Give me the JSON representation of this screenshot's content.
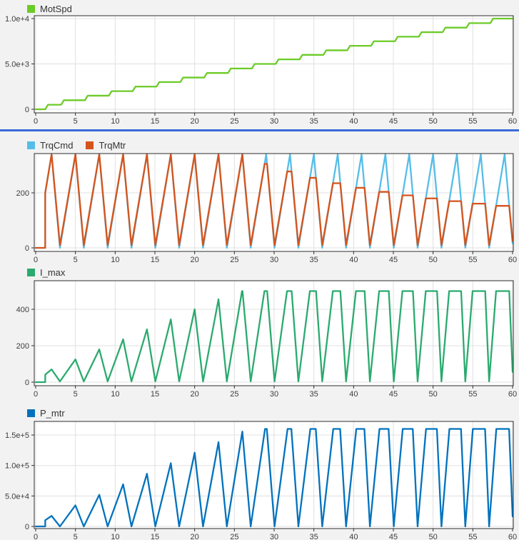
{
  "page": {
    "background_color": "#f2f2f2",
    "plot_background_color": "#ffffff",
    "grid_color": "#e0e0e0",
    "frame_color": "#2e2e2e",
    "tick_label_color": "#3d3d3d",
    "divider_color": "#3b6adb"
  },
  "chart_data": [
    {
      "id": "motspd",
      "type": "line",
      "title": "MotSpd",
      "legend": [
        {
          "label": "MotSpd",
          "color": "#6ccb28"
        }
      ],
      "x_ticks": [
        0,
        5,
        10,
        15,
        20,
        25,
        30,
        35,
        40,
        45,
        50,
        55,
        60
      ],
      "xlim": [
        0,
        60
      ],
      "y_ticks": [
        {
          "value": 0,
          "label": "0"
        },
        {
          "value": 5000,
          "label": "5.0e+3"
        },
        {
          "value": 10000,
          "label": "1.0e+4"
        }
      ],
      "ylim": [
        0,
        10000
      ],
      "grid": true,
      "series": [
        {
          "name": "MotSpd",
          "color": "#6ccb28",
          "kind": "staircase",
          "start": 0,
          "ramp": 0.35,
          "t_end": 60,
          "step_times": [
            1.2,
            3.2,
            6.2,
            9.2,
            12.2,
            15.2,
            18.2,
            21.2,
            24.2,
            27.2,
            30.2,
            33.2,
            36.2,
            39.2,
            42.2,
            45.2,
            48.2,
            51.2,
            54.2,
            57.2
          ],
          "step_values": [
            500,
            1000,
            1500,
            2000,
            2500,
            3000,
            3500,
            4000,
            4500,
            5000,
            5500,
            6000,
            6500,
            7000,
            7500,
            8000,
            8500,
            9000,
            9500,
            10000
          ]
        }
      ]
    },
    {
      "id": "torque",
      "type": "line",
      "title": "TrqCmd / TrqMtr",
      "legend": [
        {
          "label": "TrqCmd",
          "color": "#55bde8"
        },
        {
          "label": "TrqMtr",
          "color": "#d5541d"
        }
      ],
      "x_ticks": [
        0,
        5,
        10,
        15,
        20,
        25,
        30,
        35,
        40,
        45,
        50,
        55,
        60
      ],
      "xlim": [
        0,
        60
      ],
      "y_ticks": [
        {
          "value": 0,
          "label": "0"
        },
        {
          "value": 200,
          "label": "200"
        }
      ],
      "ylim": [
        0,
        345
      ],
      "grid": true,
      "series": [
        {
          "name": "TrqCmd",
          "color": "#55bde8",
          "kind": "triangle_train",
          "enable_time": 1.2,
          "rise": 1.95,
          "fall": 1.05,
          "trough": 0,
          "t_end": 60,
          "peak_times": [
            2,
            5,
            8,
            11,
            14,
            17,
            20,
            23,
            26,
            29,
            32,
            35,
            38,
            41,
            44,
            47,
            50,
            53,
            56,
            59
          ],
          "virtual_peaks": [
            340,
            340,
            340,
            340,
            340,
            340,
            340,
            340,
            340,
            340,
            340,
            340,
            340,
            340,
            340,
            340,
            340,
            340,
            340,
            340
          ]
        },
        {
          "name": "TrqMtr",
          "color": "#d5541d",
          "kind": "triangle_train",
          "enable_time": 1.2,
          "rise": 1.95,
          "fall": 1.05,
          "trough": 10,
          "t_end": 60,
          "peak_times": [
            2,
            5,
            8,
            11,
            14,
            17,
            20,
            23,
            26,
            29,
            32,
            35,
            38,
            41,
            44,
            47,
            50,
            53,
            56,
            59
          ],
          "virtual_peaks": [
            340,
            340,
            340,
            340,
            340,
            340,
            340,
            340,
            340,
            340,
            340,
            340,
            340,
            340,
            340,
            340,
            340,
            340,
            340,
            340
          ],
          "clips": [
            340,
            340,
            340,
            340,
            340,
            340,
            340,
            340,
            340,
            305.6,
            277.8,
            254.7,
            235.1,
            218.3,
            203.7,
            191,
            179.8,
            169.8,
            160.8,
            152.8
          ]
        }
      ]
    },
    {
      "id": "i_max",
      "type": "line",
      "title": "I_max",
      "legend": [
        {
          "label": "I_max",
          "color": "#2baa6e"
        }
      ],
      "x_ticks": [
        0,
        5,
        10,
        15,
        20,
        25,
        30,
        35,
        40,
        45,
        50,
        55,
        60
      ],
      "xlim": [
        0,
        60
      ],
      "y_ticks": [
        {
          "value": 0,
          "label": "0"
        },
        {
          "value": 200,
          "label": "200"
        },
        {
          "value": 400,
          "label": "400"
        }
      ],
      "ylim": [
        0,
        500
      ],
      "grid": true,
      "series": [
        {
          "name": "I_max",
          "color": "#2baa6e",
          "kind": "triangle_train",
          "enable_time": 1.2,
          "rise": 1.95,
          "fall": 1.05,
          "trough": 4,
          "t_end": 60,
          "clip": 500,
          "peak_times": [
            2,
            5,
            8,
            11,
            14,
            17,
            20,
            23,
            26,
            29,
            32,
            35,
            38,
            41,
            44,
            47,
            50,
            53,
            56,
            59
          ],
          "virtual_peaks": [
            70,
            125,
            180,
            235,
            290,
            345,
            400,
            455,
            510,
            565,
            620,
            675,
            730,
            785,
            840,
            895,
            950,
            1005,
            1060,
            1115
          ]
        }
      ]
    },
    {
      "id": "p_mtr",
      "type": "line",
      "title": "P_mtr",
      "legend": [
        {
          "label": "P_mtr",
          "color": "#0072bd"
        }
      ],
      "x_ticks": [
        0,
        5,
        10,
        15,
        20,
        25,
        30,
        35,
        40,
        45,
        50,
        55,
        60
      ],
      "xlim": [
        0,
        60
      ],
      "y_ticks": [
        {
          "value": 0,
          "label": "0"
        },
        {
          "value": 50000,
          "label": "5.0e+4"
        },
        {
          "value": 100000,
          "label": "1.0e+5"
        },
        {
          "value": 150000,
          "label": "1.5e+5"
        }
      ],
      "ylim": [
        0,
        160000
      ],
      "grid": true,
      "series": [
        {
          "name": "P_mtr",
          "color": "#0072bd",
          "kind": "triangle_train",
          "enable_time": 1.2,
          "rise": 1.95,
          "fall": 1.05,
          "trough": 0,
          "t_end": 60,
          "clip": 160000,
          "peak_times": [
            2,
            5,
            8,
            11,
            14,
            17,
            20,
            23,
            26,
            29,
            32,
            35,
            38,
            41,
            44,
            47,
            50,
            53,
            56,
            59
          ],
          "virtual_peaks": [
            17300,
            34600,
            51900,
            69200,
            86500,
            103800,
            121100,
            138400,
            155700,
            173000,
            190300,
            207600,
            224900,
            242200,
            259500,
            276800,
            294100,
            311400,
            328700,
            346000
          ]
        }
      ]
    }
  ]
}
